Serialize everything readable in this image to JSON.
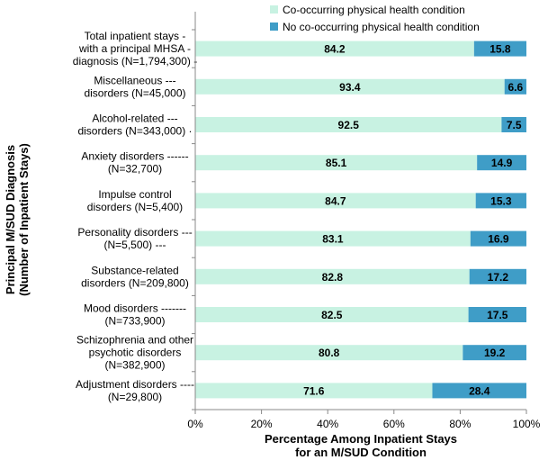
{
  "chart_data": {
    "type": "bar",
    "orientation": "horizontal",
    "stacked": true,
    "categories": [
      "Total inpatient stays -|with a principal MHSA -|diagnosis (N=1,794,300) -",
      "Miscellaneous ---|disorders (N=45,000)",
      "Alcohol-related ---|disorders (N=343,000) ·",
      "Anxiety disorders ------|(N=32,700)",
      "Impulse control|disorders (N=5,400)",
      "Personality disorders ---|(N=5,500) ---",
      "Substance-related|disorders (N=209,800)",
      "Mood disorders -------|(N=733,900)",
      "Schizophrenia and other|psychotic disorders|(N=382,900)",
      "Adjustment disorders ----|(N=29,800)"
    ],
    "series": [
      {
        "name": "Co-occurring physical health condition",
        "color": "#c8f2e2",
        "values": [
          84.2,
          93.4,
          92.5,
          85.1,
          84.7,
          83.1,
          82.8,
          82.5,
          80.8,
          71.6
        ]
      },
      {
        "name": "No co-occurring physical health condition",
        "color": "#3f9dc7",
        "values": [
          15.8,
          6.6,
          7.5,
          14.9,
          15.3,
          16.9,
          17.2,
          17.5,
          19.2,
          28.4
        ]
      }
    ],
    "xlabel": [
      "Percentage Among Inpatient Stays",
      "for an M/SUD Condition"
    ],
    "ylabel": [
      "Principal M/SUD Diagnosis",
      "(Number of Inpatient Stays)"
    ],
    "xlim": [
      0,
      100
    ],
    "xticks": [
      "0%",
      "20%",
      "40%",
      "60%",
      "80%",
      "100%"
    ],
    "grid": false,
    "legend_position": "top"
  }
}
